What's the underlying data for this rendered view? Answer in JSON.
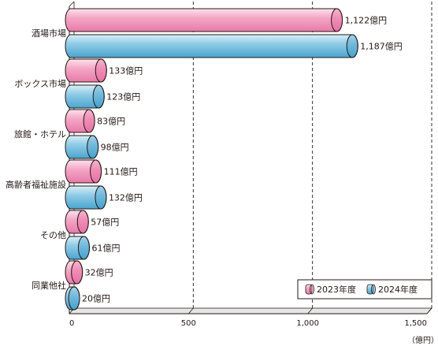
{
  "chart_data": {
    "type": "bar",
    "orientation": "horizontal",
    "categories": [
      "酒場市場",
      "ボックス市場",
      "旅館・ホテル",
      "高齢者福祉施設",
      "その他",
      "同業他社"
    ],
    "series": [
      {
        "name": "2023年度",
        "values": [
          1122,
          133,
          83,
          111,
          57,
          32
        ],
        "labels": [
          "1,122億円",
          "133億円",
          "83億円",
          "111億円",
          "57億円",
          "32億円"
        ]
      },
      {
        "name": "2024年度",
        "values": [
          1187,
          123,
          98,
          132,
          61,
          20
        ],
        "labels": [
          "1,187億円",
          "123億円",
          "98億円",
          "132億円",
          "61億円",
          "20億円"
        ]
      }
    ],
    "x_ticks": [
      0,
      500,
      1000,
      1500
    ],
    "x_tick_labels": [
      "0",
      "500",
      "1,000",
      "1,500"
    ],
    "xlim": [
      0,
      1500
    ],
    "unit_label": "（億円）",
    "grid": "vertical dashed at 500 and 1,000",
    "legend_position": "bottom-right"
  },
  "colors": {
    "series_2023": "#f4a7c6",
    "series_2023_cap": "#e9609a",
    "series_2024": "#8fcbe6",
    "series_2024_cap": "#3e9bc9",
    "outline": "#231815",
    "grid": "#231815"
  }
}
